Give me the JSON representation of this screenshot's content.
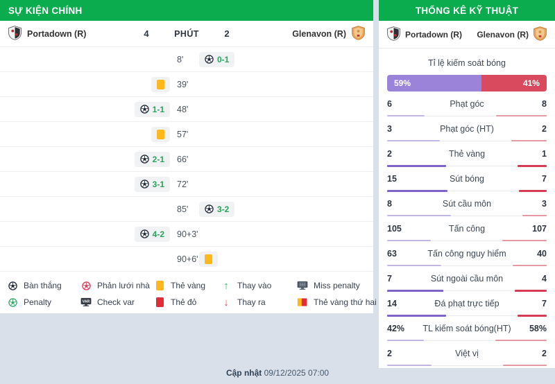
{
  "left_panel": {
    "title": "SỰ KIỆN CHÍNH",
    "home_team": "Portadown (R)",
    "away_team": "Glenavon (R)",
    "home_score": "4",
    "center_label": "PHÚT",
    "away_score": "2",
    "events": [
      {
        "time": "8'",
        "side": "away",
        "type": "goal",
        "score": "0-1"
      },
      {
        "time": "39'",
        "side": "home",
        "type": "yellow-card"
      },
      {
        "time": "48'",
        "side": "home",
        "type": "goal",
        "score": "1-1"
      },
      {
        "time": "57'",
        "side": "home",
        "type": "yellow-card"
      },
      {
        "time": "66'",
        "side": "home",
        "type": "goal",
        "score": "2-1"
      },
      {
        "time": "72'",
        "side": "home",
        "type": "goal",
        "score": "3-1"
      },
      {
        "time": "85'",
        "side": "away",
        "type": "goal",
        "score": "3-2"
      },
      {
        "time": "90+3'",
        "side": "home",
        "type": "goal",
        "score": "4-2"
      },
      {
        "time": "90+6'",
        "side": "away",
        "type": "yellow-card"
      }
    ],
    "legend": [
      {
        "icon": "goal-ball-icon",
        "label": "Bàn thắng"
      },
      {
        "icon": "own-goal-ball-icon",
        "label": "Phản lưới nhà"
      },
      {
        "icon": "yellow-card-icon",
        "label": "Thẻ vàng"
      },
      {
        "icon": "sub-in-arrow-icon",
        "label": "Thay vào"
      },
      {
        "icon": "miss-penalty-icon",
        "label": "Miss penalty"
      },
      {
        "icon": "penalty-ball-icon",
        "label": "Penalty"
      },
      {
        "icon": "var-monitor-icon",
        "label": "Check var"
      },
      {
        "icon": "red-card-icon",
        "label": "Thẻ đỏ"
      },
      {
        "icon": "sub-out-arrow-icon",
        "label": "Thay ra"
      },
      {
        "icon": "second-yellow-card-icon",
        "label": "Thẻ vàng thứ hai"
      }
    ]
  },
  "right_panel": {
    "title": "THỐNG KÊ KỸ THUẬT",
    "home_team": "Portadown (R)",
    "away_team": "Glenavon (R)",
    "possession": {
      "title": "Tỉ lệ kiếm soát bóng",
      "home_label": "59%",
      "away_label": "41%",
      "home_pct": 59,
      "away_pct": 41
    },
    "stats": [
      {
        "label": "Phạt góc",
        "home": "6",
        "away": "8",
        "emphasis": false
      },
      {
        "label": "Phạt góc (HT)",
        "home": "3",
        "away": "2",
        "emphasis": false
      },
      {
        "label": "Thẻ vàng",
        "home": "2",
        "away": "1",
        "emphasis": true
      },
      {
        "label": "Sút bóng",
        "home": "15",
        "away": "7",
        "emphasis": true
      },
      {
        "label": "Sút cầu môn",
        "home": "8",
        "away": "3",
        "emphasis": false
      },
      {
        "label": "Tấn công",
        "home": "105",
        "away": "107",
        "emphasis": false
      },
      {
        "label": "Tấn công nguy hiểm",
        "home": "63",
        "away": "40",
        "emphasis": false
      },
      {
        "label": "Sút ngoài cầu môn",
        "home": "7",
        "away": "4",
        "emphasis": true
      },
      {
        "label": "Đá phạt trực tiếp",
        "home": "14",
        "away": "7",
        "emphasis": true
      },
      {
        "label": "TL kiếm soát bóng(HT)",
        "home": "42%",
        "away": "58%",
        "emphasis": false
      },
      {
        "label": "Việt vị",
        "home": "2",
        "away": "2",
        "emphasis": false
      }
    ]
  },
  "footer": {
    "label": "Cập nhật",
    "datetime": "09/12/2025 07:00"
  },
  "colors": {
    "header_green": "#0BAC4E",
    "page_bg": "#D9E0E9",
    "panel_bg": "#FFFFFF",
    "badge_bg": "#F1F2F4",
    "goal_score_green": "#27A35B",
    "yellow_card": "#FFB81C",
    "red_card": "#E02D39",
    "possession_home_purple": "#9B83DA",
    "possession_away_red": "#D94A5F"
  }
}
